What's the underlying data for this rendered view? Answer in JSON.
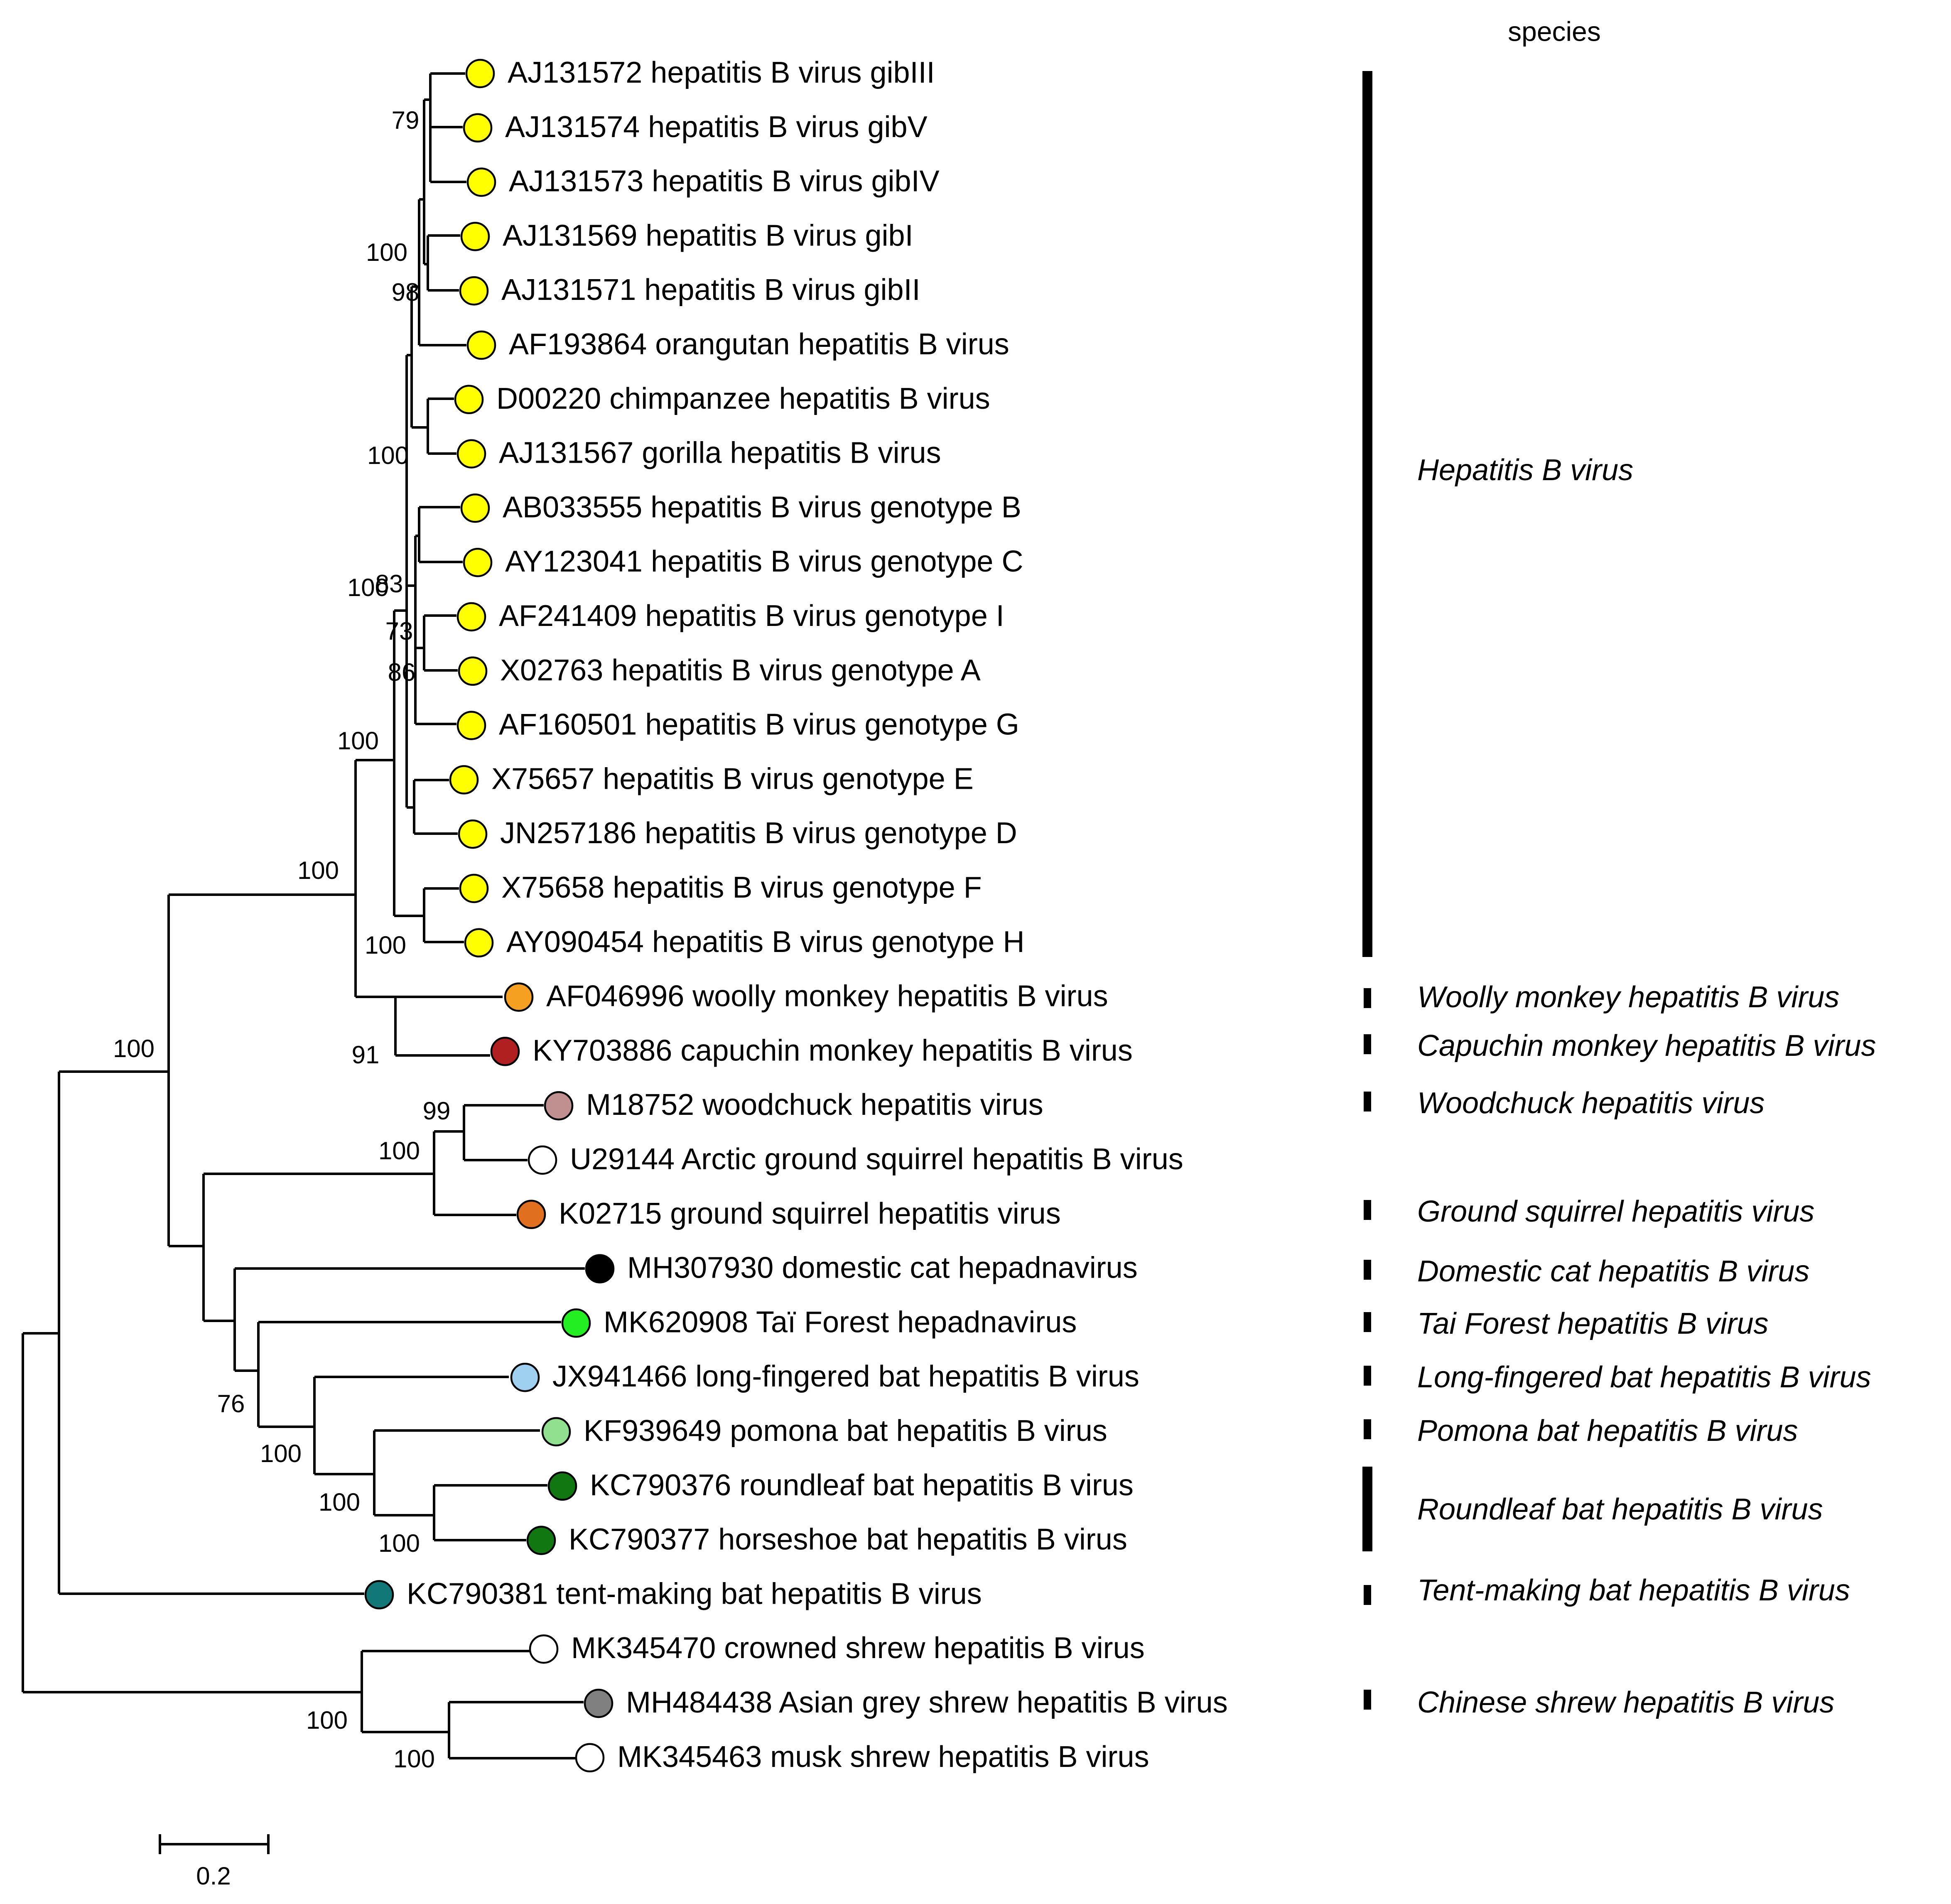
{
  "header": "species",
  "leaves": [
    {
      "label": "AJ131572 hepatitis B virus gibIII",
      "color": "#ffff00"
    },
    {
      "label": "AJ131574 hepatitis B virus gibV",
      "color": "#ffff00"
    },
    {
      "label": "AJ131573 hepatitis B virus gibIV",
      "color": "#ffff00"
    },
    {
      "label": "AJ131569 hepatitis B virus gibI",
      "color": "#ffff00"
    },
    {
      "label": "AJ131571 hepatitis B virus gibII",
      "color": "#ffff00"
    },
    {
      "label": "AF193864 orangutan hepatitis B virus",
      "color": "#ffff00"
    },
    {
      "label": "D00220 chimpanzee hepatitis B virus",
      "color": "#ffff00"
    },
    {
      "label": "AJ131567 gorilla hepatitis B virus",
      "color": "#ffff00"
    },
    {
      "label": "AB033555 hepatitis B virus genotype B",
      "color": "#ffff00"
    },
    {
      "label": "AY123041 hepatitis B virus genotype C",
      "color": "#ffff00"
    },
    {
      "label": "AF241409 hepatitis B virus genotype I",
      "color": "#ffff00"
    },
    {
      "label": "X02763 hepatitis B virus genotype A",
      "color": "#ffff00"
    },
    {
      "label": "AF160501 hepatitis B virus genotype G",
      "color": "#ffff00"
    },
    {
      "label": "X75657 hepatitis B virus genotype E",
      "color": "#ffff00"
    },
    {
      "label": "JN257186 hepatitis B virus genotype D",
      "color": "#ffff00"
    },
    {
      "label": "X75658 hepatitis B virus genotype F",
      "color": "#ffff00"
    },
    {
      "label": "AY090454 hepatitis B virus genotype H",
      "color": "#ffff00"
    },
    {
      "label": "AF046996 woolly monkey hepatitis B virus",
      "color": "#f5a020"
    },
    {
      "label": "KY703886 capuchin monkey hepatitis B virus",
      "color": "#b02020"
    },
    {
      "label": "M18752 woodchuck hepatitis virus",
      "color": "#c09090"
    },
    {
      "label": "U29144 Arctic ground squirrel hepatitis B virus",
      "color": "#ffffff"
    },
    {
      "label": "K02715 ground squirrel hepatitis virus",
      "color": "#e07020"
    },
    {
      "label": "MH307930 domestic cat hepadnavirus",
      "color": "#000000"
    },
    {
      "label": "MK620908 Taï Forest hepadnavirus",
      "color": "#22ee22"
    },
    {
      "label": "JX941466 long-fingered bat hepatitis B virus",
      "color": "#a0d0f0"
    },
    {
      "label": "KF939649 pomona bat hepatitis B virus",
      "color": "#90e090"
    },
    {
      "label": "KC790376 roundleaf bat hepatitis B virus",
      "color": "#117711"
    },
    {
      "label": "KC790377 horseshoe bat hepatitis B virus",
      "color": "#117711"
    },
    {
      "label": "KC790381 tent-making bat hepatitis B virus",
      "color": "#117777"
    },
    {
      "label": "MK345470 crowned shrew hepatitis B virus",
      "color": "#ffffff"
    },
    {
      "label": "MH484438 Asian grey shrew hepatitis B virus",
      "color": "#808080"
    },
    {
      "label": "MK345463 musk shrew hepatitis B virus",
      "color": "#ffffff"
    }
  ],
  "bootstrap": [
    79,
    100,
    98,
    100,
    100,
    83,
    73,
    86,
    100,
    100,
    100,
    91,
    100,
    99,
    100,
    76,
    100,
    100,
    100,
    100,
    100
  ],
  "species": [
    "Hepatitis B virus",
    "Woolly monkey hepatitis B virus",
    "Capuchin monkey hepatitis B virus",
    "Woodchuck hepatitis virus",
    "Ground squirrel hepatitis virus",
    "Domestic cat hepatitis B virus",
    "Tai Forest hepatitis B virus",
    "Long-fingered bat hepatitis B virus",
    "Pomona bat hepatitis B virus",
    "Roundleaf bat hepatitis B virus",
    "Tent-making bat hepatitis B virus",
    "Chinese shrew hepatitis B virus"
  ],
  "scale_bar": "0.2"
}
